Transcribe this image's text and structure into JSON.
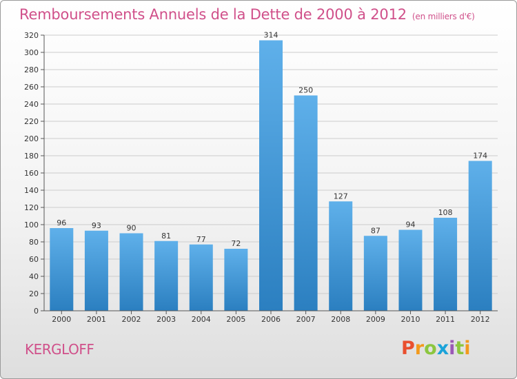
{
  "title": "Remboursements Annuels de la Dette de 2000 à 2012",
  "unit": "(en milliers d'€)",
  "place": "KERGLOFF",
  "logo": {
    "text": "Proxiti",
    "letters": [
      {
        "ch": "P",
        "color": "#e94f2e"
      },
      {
        "ch": "r",
        "color": "#f29a1d"
      },
      {
        "ch": "o",
        "color": "#8cc63f"
      },
      {
        "ch": "x",
        "color": "#1aa3d9"
      },
      {
        "ch": "i",
        "color": "#9b59b6"
      },
      {
        "ch": "t",
        "color": "#8cc63f"
      },
      {
        "ch": "i",
        "color": "#f29a1d"
      }
    ]
  },
  "colors": {
    "bar_light": "#5fb0ea",
    "bar_dark": "#2b7fc0",
    "title": "#d0508a",
    "grid": "#cccccc"
  },
  "chart_data": {
    "type": "bar",
    "title": "Remboursements Annuels de la Dette de 2000 à 2012",
    "xlabel": "",
    "ylabel": "",
    "categories": [
      "2000",
      "2001",
      "2002",
      "2003",
      "2004",
      "2005",
      "2006",
      "2007",
      "2008",
      "2009",
      "2010",
      "2011",
      "2012"
    ],
    "values": [
      96,
      93,
      90,
      81,
      77,
      72,
      314,
      250,
      127,
      87,
      94,
      108,
      174
    ],
    "ylim": [
      0,
      320
    ],
    "yticks": [
      0,
      20,
      40,
      60,
      80,
      100,
      120,
      140,
      160,
      180,
      200,
      220,
      240,
      260,
      280,
      300,
      320
    ],
    "grid": true,
    "legend": "none"
  }
}
